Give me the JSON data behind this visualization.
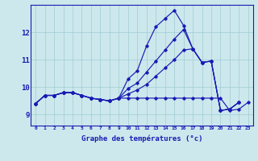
{
  "xlabel": "Graphe des températures (°c)",
  "background_color": "#cce8ec",
  "line_color": "#1a1ab4",
  "grid_color": "#9fccd4",
  "x_ticks": [
    0,
    1,
    2,
    3,
    4,
    5,
    6,
    7,
    8,
    9,
    10,
    11,
    12,
    13,
    14,
    15,
    16,
    17,
    18,
    19,
    20,
    21,
    22,
    23
  ],
  "y_ticks": [
    9,
    10,
    11,
    12
  ],
  "ylim": [
    8.6,
    13.0
  ],
  "xlim": [
    -0.5,
    23.5
  ],
  "series": [
    {
      "x": [
        0,
        1,
        2,
        3,
        4,
        5,
        6,
        7,
        8,
        9,
        10,
        11,
        12,
        13,
        14,
        15,
        16,
        17,
        18,
        19,
        20,
        21,
        22
      ],
      "y": [
        9.4,
        9.7,
        9.7,
        9.8,
        9.8,
        9.7,
        9.6,
        9.55,
        9.5,
        9.6,
        10.3,
        10.6,
        11.5,
        12.2,
        12.5,
        12.8,
        12.25,
        11.4,
        10.9,
        10.95,
        9.15,
        9.2,
        9.45
      ]
    },
    {
      "x": [
        0,
        1,
        2,
        3,
        4,
        5,
        6,
        7,
        8,
        9,
        10,
        11,
        12,
        13,
        14,
        15,
        16,
        17,
        18,
        19,
        20,
        21,
        22,
        23
      ],
      "y": [
        9.4,
        9.7,
        9.7,
        9.8,
        9.8,
        9.7,
        9.6,
        9.55,
        9.5,
        9.6,
        9.6,
        9.6,
        9.6,
        9.6,
        9.6,
        9.6,
        9.6,
        9.6,
        9.6,
        9.6,
        9.6,
        9.15,
        9.2,
        9.45
      ]
    },
    {
      "x": [
        0,
        1,
        2,
        3,
        4,
        5,
        6,
        7,
        8,
        9,
        10,
        11,
        12,
        13,
        14,
        15,
        16,
        17,
        18,
        19,
        20,
        21,
        22
      ],
      "y": [
        9.4,
        9.7,
        9.7,
        9.8,
        9.8,
        9.7,
        9.6,
        9.55,
        9.5,
        9.6,
        9.95,
        10.15,
        10.55,
        10.95,
        11.35,
        11.75,
        12.1,
        11.4,
        10.9,
        10.95,
        9.15,
        9.2,
        9.45
      ]
    },
    {
      "x": [
        0,
        1,
        2,
        3,
        4,
        5,
        6,
        7,
        8,
        9,
        10,
        11,
        12,
        13,
        14,
        15,
        16,
        17,
        18,
        19,
        20,
        21,
        22
      ],
      "y": [
        9.4,
        9.7,
        9.7,
        9.8,
        9.8,
        9.7,
        9.6,
        9.55,
        9.5,
        9.6,
        9.75,
        9.9,
        10.1,
        10.4,
        10.7,
        11.0,
        11.35,
        11.4,
        10.9,
        10.95,
        9.15,
        9.2,
        9.45
      ]
    }
  ]
}
